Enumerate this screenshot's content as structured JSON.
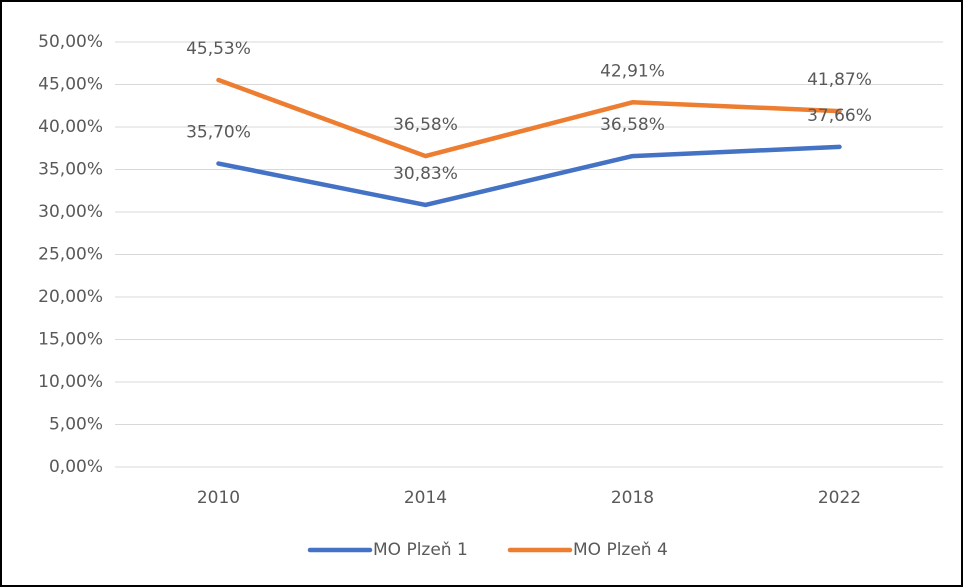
{
  "chart_data": {
    "type": "line",
    "categories": [
      "2010",
      "2014",
      "2018",
      "2022"
    ],
    "series": [
      {
        "name": "MO Plzeň 1",
        "color": "#4472c4",
        "values": [
          35.7,
          30.83,
          36.58,
          37.66
        ],
        "value_labels": [
          "35,70%",
          "30,83%",
          "36,58%",
          "37,66%"
        ]
      },
      {
        "name": "MO Plzeň 4",
        "color": "#ed7d31",
        "values": [
          45.53,
          36.58,
          42.91,
          41.87
        ],
        "value_labels": [
          "45,53%",
          "36,58%",
          "42,91%",
          "41,87%"
        ]
      }
    ],
    "ylim": [
      0,
      50
    ],
    "yticks": [
      {
        "value": 0,
        "label": "0,00%"
      },
      {
        "value": 5,
        "label": "5,00%"
      },
      {
        "value": 10,
        "label": "10,00%"
      },
      {
        "value": 15,
        "label": "15,00%"
      },
      {
        "value": 20,
        "label": "20,00%"
      },
      {
        "value": 25,
        "label": "25,00%"
      },
      {
        "value": 30,
        "label": "30,00%"
      },
      {
        "value": 35,
        "label": "35,00%"
      },
      {
        "value": 40,
        "label": "40,00%"
      },
      {
        "value": 45,
        "label": "45,00%"
      },
      {
        "value": 50,
        "label": "50,00%"
      }
    ],
    "grid": true,
    "legend": "bottom"
  }
}
